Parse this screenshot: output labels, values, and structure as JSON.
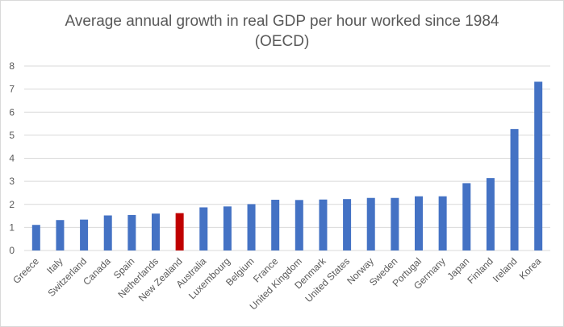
{
  "chart_data": {
    "type": "bar",
    "title": [
      "Average annual growth in real GDP per hour worked since 1984",
      "(OECD)"
    ],
    "xlabel": "",
    "ylabel": "",
    "ylim": [
      0,
      8
    ],
    "yticks": [
      0,
      1,
      2,
      3,
      4,
      5,
      6,
      7,
      8
    ],
    "grid": true,
    "legend": "none",
    "categories": [
      "Greece",
      "Italy",
      "Switzerland",
      "Canada",
      "Spain",
      "Netherlands",
      "New Zealand",
      "Australia",
      "Luxembourg",
      "Belgium",
      "France",
      "United Kingdom",
      "Denmark",
      "United States",
      "Norway",
      "Sweden",
      "Portugal",
      "Germany",
      "Japan",
      "Finland",
      "Ireland",
      "Korea"
    ],
    "values": [
      1.11,
      1.32,
      1.34,
      1.52,
      1.54,
      1.6,
      1.62,
      1.87,
      1.91,
      2.01,
      2.2,
      2.19,
      2.21,
      2.23,
      2.28,
      2.28,
      2.35,
      2.35,
      2.92,
      3.14,
      5.27,
      7.32
    ],
    "highlight": "New Zealand",
    "colors": {
      "bar": "#4472c4",
      "highlight": "#c00000",
      "grid": "#d9d9d9",
      "text": "#595959"
    }
  }
}
